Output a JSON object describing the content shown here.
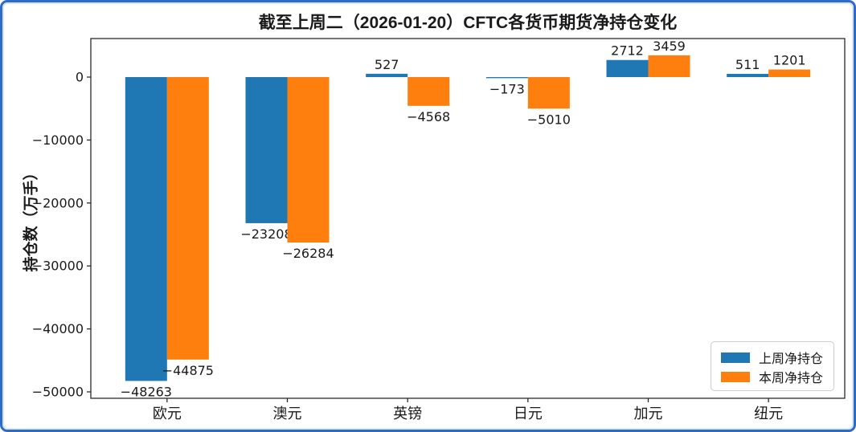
{
  "frame": {
    "background": "#ffffff",
    "border_color": "#2e6bc8"
  },
  "chart_data": {
    "type": "bar",
    "title": "截至上周二（2026-01-20）CFTC各货币期货净持仓变化",
    "ylabel": "持仓数（万手）",
    "xlabel": "",
    "categories": [
      "欧元",
      "澳元",
      "英镑",
      "日元",
      "加元",
      "纽元"
    ],
    "series": [
      {
        "name": "上周净持仓",
        "color": "#1f77b4",
        "values": [
          -48263,
          -23208,
          527,
          -173,
          2712,
          511
        ]
      },
      {
        "name": "本周净持仓",
        "color": "#ff7f0e",
        "values": [
          -44875,
          -26284,
          -4568,
          -5010,
          3459,
          1201
        ]
      }
    ],
    "yticks": [
      0,
      -10000,
      -20000,
      -30000,
      -40000,
      -50000
    ],
    "ylim": [
      -51020,
      6122
    ],
    "grid": false,
    "bar_value_labels": true,
    "legend_position": "lower right"
  }
}
